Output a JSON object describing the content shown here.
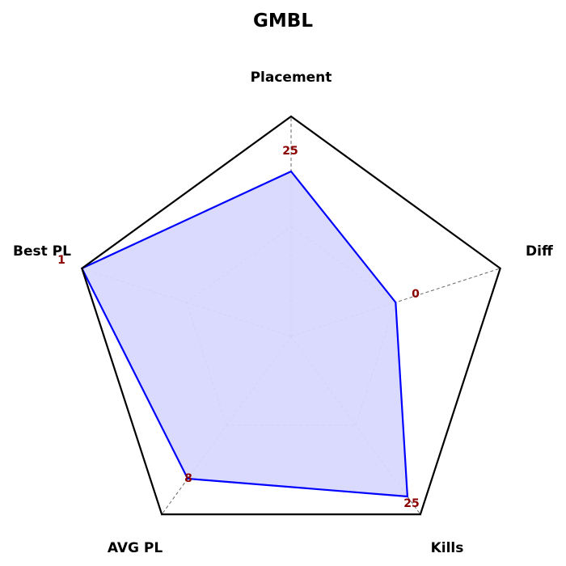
{
  "chart_data": {
    "type": "radar",
    "title": "GMBL",
    "axes": [
      "Placement",
      "Diff",
      "Kills",
      "AVG PL",
      "Best PL"
    ],
    "values": [
      0.75,
      0.5,
      0.9,
      0.8,
      1.0
    ],
    "value_labels": [
      "25",
      "0",
      "25",
      "8",
      "1"
    ],
    "grid_levels": [
      0.5,
      1.0
    ],
    "grid": true,
    "colors": {
      "series_line": "#0000ff",
      "series_fill": "#d8d8ff",
      "outline": "#000000",
      "grid": "#666666",
      "value_label": "#8b0000"
    }
  }
}
